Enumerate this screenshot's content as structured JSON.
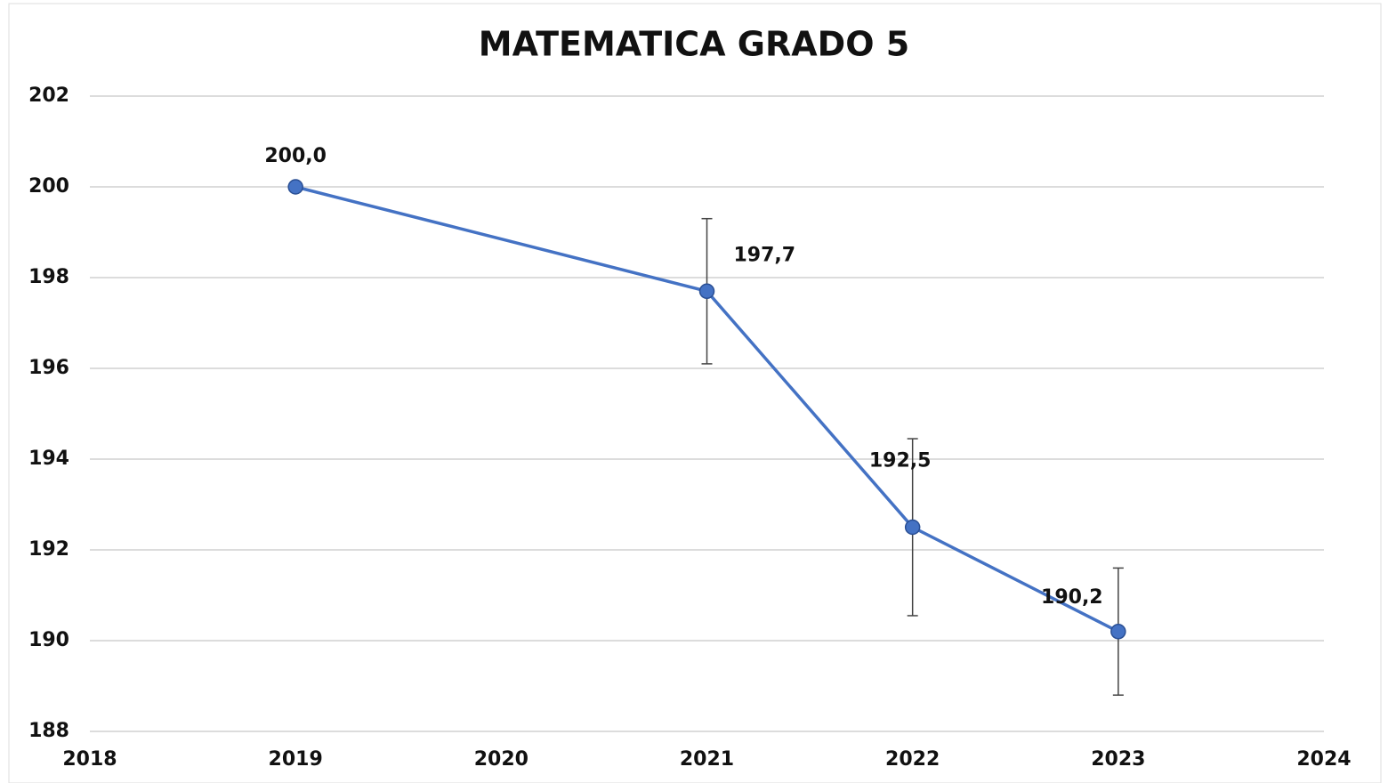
{
  "chart_data": {
    "type": "line",
    "title": "MATEMATICA GRADO 5",
    "x": [
      2019,
      2021,
      2022,
      2023
    ],
    "values": [
      200.0,
      197.7,
      192.5,
      190.2
    ],
    "value_labels": [
      "200,0",
      "197,7",
      "192,5",
      "190,2"
    ],
    "errors": [
      null,
      1.6,
      1.95,
      1.4
    ],
    "color": "#4472c4",
    "xlim": [
      2018,
      2024
    ],
    "xticks": [
      2018,
      2019,
      2020,
      2021,
      2022,
      2023,
      2024
    ],
    "ylim": [
      188,
      202
    ],
    "yticks": [
      188,
      190,
      192,
      194,
      196,
      198,
      200,
      202
    ],
    "grid": true
  }
}
